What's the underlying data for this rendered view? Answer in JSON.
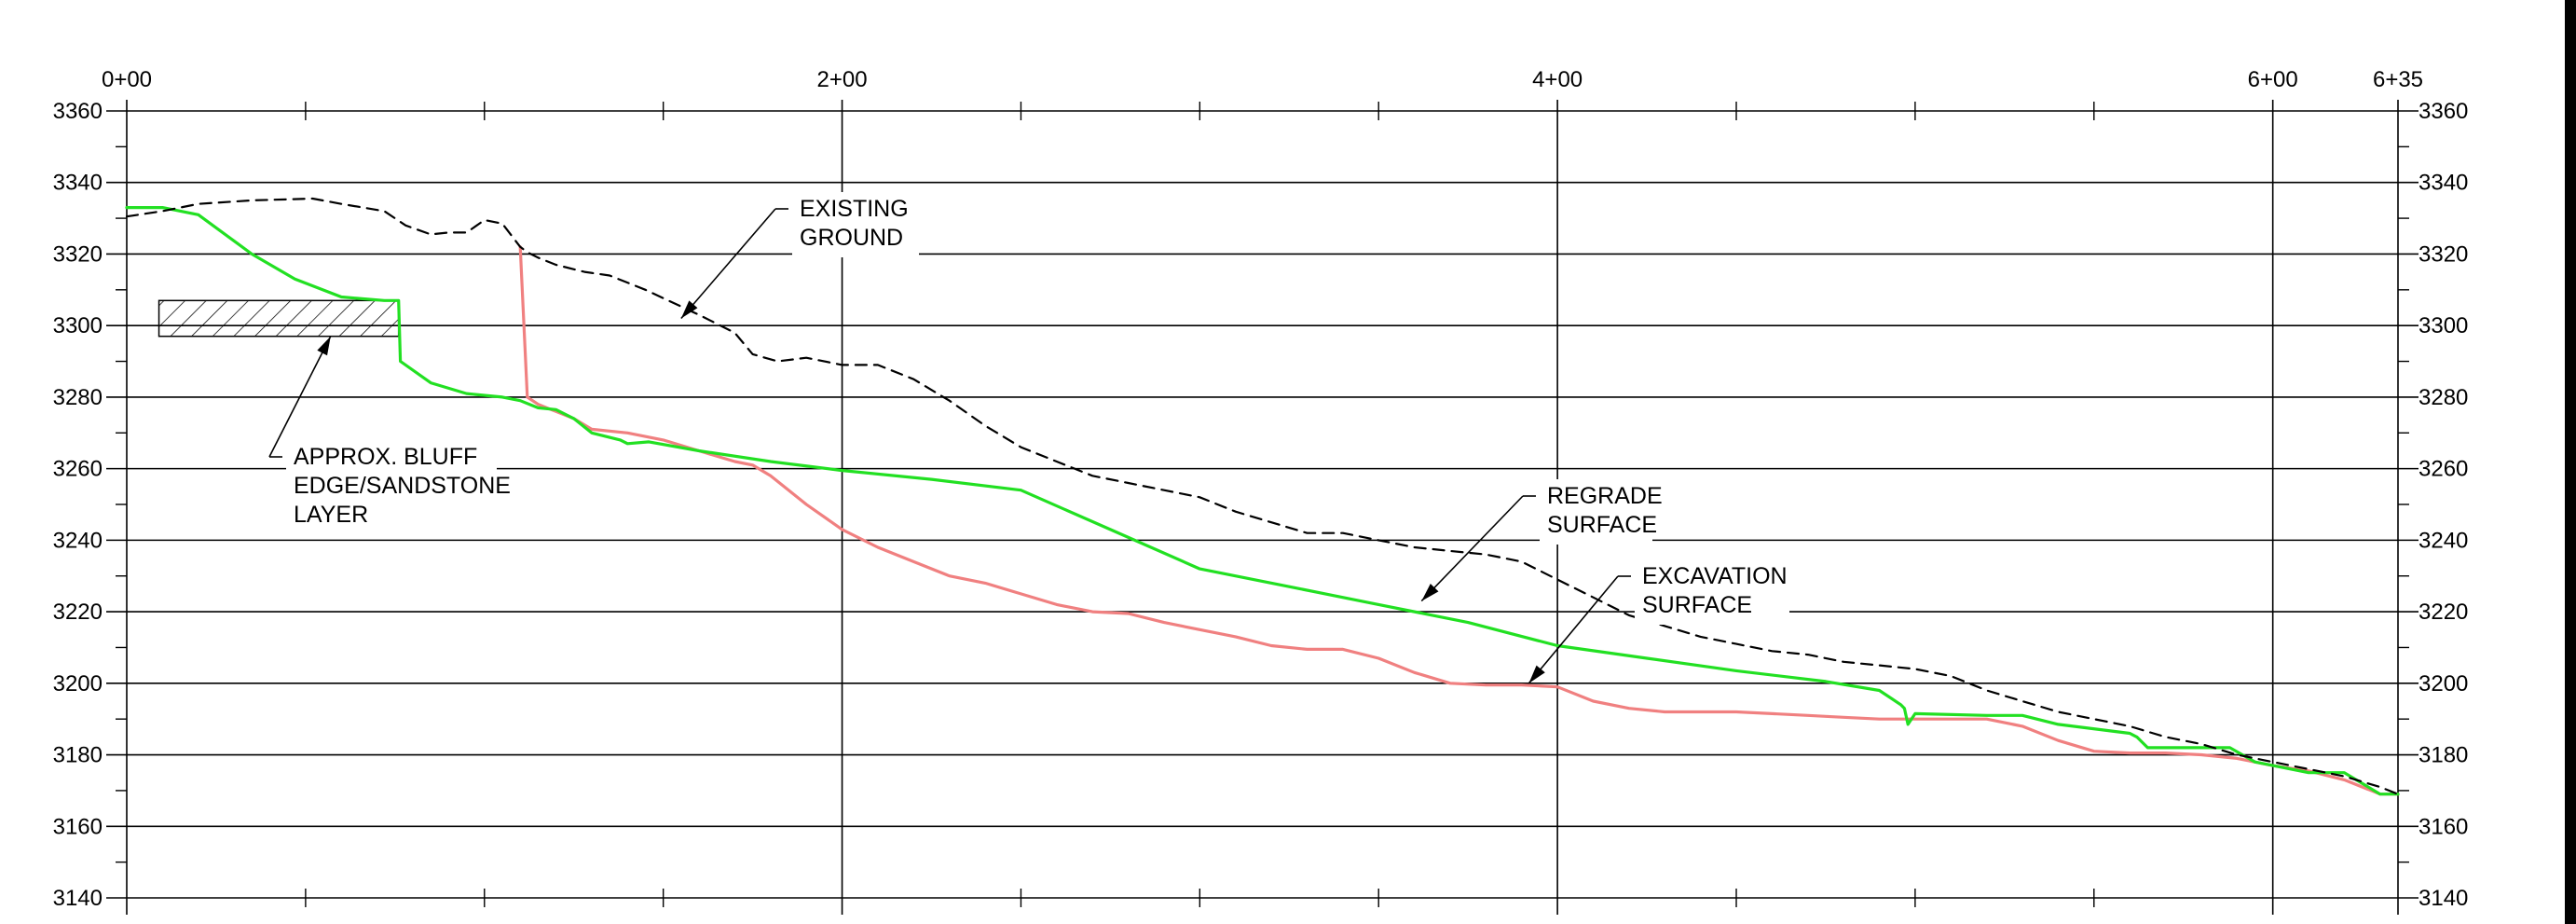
{
  "chart_data": {
    "type": "line",
    "title": "",
    "xlabel": "",
    "ylabel": "",
    "xlim": [
      0,
      635
    ],
    "ylim": [
      3140,
      3360
    ],
    "grid": true,
    "colors": {
      "existing_ground": "#000000",
      "regrade_surface": "#22e022",
      "excavation_surface": "#f08080"
    },
    "x_ticks": [
      {
        "value": 0,
        "label": "0+00"
      },
      {
        "value": 200,
        "label": "2+00"
      },
      {
        "value": 400,
        "label": "4+00"
      },
      {
        "value": 600,
        "label": "6+00"
      },
      {
        "value": 635,
        "label": "6+35"
      }
    ],
    "y_ticks": [
      {
        "value": 3360,
        "label": "3360"
      },
      {
        "value": 3340,
        "label": "3340"
      },
      {
        "value": 3320,
        "label": "3320"
      },
      {
        "value": 3300,
        "label": "3300"
      },
      {
        "value": 3280,
        "label": "3280"
      },
      {
        "value": 3260,
        "label": "3260"
      },
      {
        "value": 3240,
        "label": "3240"
      },
      {
        "value": 3220,
        "label": "3220"
      },
      {
        "value": 3200,
        "label": "3200"
      },
      {
        "value": 3180,
        "label": "3180"
      },
      {
        "value": 3160,
        "label": "3160"
      },
      {
        "value": 3140,
        "label": "3140"
      }
    ],
    "series": [
      {
        "key": "existing_ground",
        "style": "dashed",
        "x": [
          0,
          10,
          20,
          35,
          52,
          60,
          72,
          78,
          85,
          90,
          95,
          100,
          105,
          110,
          112,
          115,
          120,
          128,
          135,
          145,
          160,
          170,
          175,
          182,
          190,
          200,
          210,
          220,
          230,
          240,
          250,
          260,
          270,
          280,
          290,
          300,
          310,
          320,
          330,
          340,
          350,
          360,
          370,
          380,
          390,
          400,
          410,
          420,
          430,
          440,
          450,
          460,
          470,
          480,
          490,
          500,
          510,
          520,
          530,
          540,
          550,
          560,
          570,
          580,
          590,
          600,
          610,
          620,
          630,
          635
        ],
        "y": [
          3330.5,
          3332,
          3334,
          3335,
          3335.5,
          3334,
          3332,
          3328,
          3325.5,
          3326,
          3326,
          3329.5,
          3328.5,
          3322,
          3320.5,
          3319,
          3317,
          3315,
          3314,
          3310,
          3303,
          3298,
          3292,
          3290,
          3291,
          3289,
          3289,
          3285,
          3279,
          3272,
          3266,
          3262,
          3258,
          3256,
          3254,
          3252,
          3248,
          3245,
          3242,
          3242,
          3240,
          3238,
          3237,
          3236,
          3234,
          3229,
          3224,
          3219,
          3216,
          3213,
          3211,
          3209,
          3208,
          3206,
          3205,
          3204,
          3202,
          3198,
          3195,
          3192,
          3190,
          3188,
          3185,
          3183,
          3180,
          3178,
          3176,
          3174,
          3171,
          3169
        ]
      },
      {
        "key": "regrade_surface",
        "style": "solid",
        "x": [
          0,
          10,
          20,
          35,
          47,
          60,
          72,
          76,
          76.5,
          85,
          95,
          105,
          110,
          115,
          120,
          125,
          130,
          138,
          140,
          146,
          160,
          180,
          200,
          225,
          250,
          275,
          300,
          325,
          350,
          375,
          400,
          425,
          450,
          475,
          490,
          496,
          497,
          498,
          500,
          520,
          530,
          540,
          560,
          562,
          565,
          575,
          588,
          595,
          610,
          620,
          630,
          635
        ],
        "y": [
          3333,
          3333,
          3331,
          3320,
          3313,
          3308,
          3307,
          3307,
          3290,
          3284,
          3281,
          3280,
          3279,
          3277,
          3276.5,
          3274,
          3270,
          3268,
          3267,
          3267.5,
          3265,
          3262,
          3259.5,
          3257,
          3254,
          3243,
          3232,
          3227,
          3222,
          3217,
          3210.5,
          3207,
          3203.5,
          3200.5,
          3198,
          3194,
          3193,
          3188.5,
          3191.5,
          3191,
          3191,
          3188.5,
          3186,
          3185,
          3182,
          3182,
          3182,
          3178,
          3175,
          3175,
          3169,
          3169
        ]
      },
      {
        "key": "excavation_surface",
        "style": "solid",
        "x": [
          110,
          112,
          115,
          120,
          125,
          130,
          140,
          150,
          160,
          170,
          175,
          180,
          190,
          200,
          210,
          220,
          230,
          240,
          250,
          260,
          270,
          280,
          290,
          300,
          310,
          320,
          330,
          340,
          350,
          360,
          370,
          380,
          390,
          400,
          410,
          420,
          430,
          440,
          450,
          460,
          470,
          480,
          490,
          500,
          510,
          520,
          530,
          540,
          550,
          560,
          570,
          580,
          590,
          600,
          610,
          620,
          630,
          635
        ],
        "y": [
          3322,
          3280,
          3278,
          3276,
          3274,
          3271,
          3270,
          3268,
          3265,
          3262,
          3261,
          3258,
          3250,
          3243,
          3238,
          3234,
          3230,
          3228,
          3225,
          3222,
          3220,
          3219.5,
          3217,
          3215,
          3213,
          3210.5,
          3209.5,
          3209.5,
          3207,
          3203,
          3200,
          3199.5,
          3199.5,
          3199,
          3195,
          3193,
          3192,
          3192,
          3192,
          3191.5,
          3191,
          3190.5,
          3190,
          3190,
          3190,
          3190,
          3188,
          3184,
          3181,
          3180.5,
          3180.5,
          3180,
          3179,
          3177,
          3175.5,
          3173,
          3169,
          3169
        ]
      }
    ],
    "hatch_region": {
      "x": [
        9,
        76
      ],
      "y": [
        3297,
        3307
      ]
    },
    "annotations": [
      {
        "key": "existing_ground",
        "lines": [
          "EXISTING",
          "GROUND"
        ],
        "arrow_to": {
          "x": 155,
          "y": 3302
        }
      },
      {
        "key": "bluff",
        "lines": [
          "APPROX. BLUFF",
          "EDGE/SANDSTONE",
          "LAYER"
        ],
        "arrow_to": {
          "x": 57,
          "y": 3297
        }
      },
      {
        "key": "regrade",
        "lines": [
          "REGRADE",
          "SURFACE"
        ],
        "arrow_to": {
          "x": 362,
          "y": 3223
        }
      },
      {
        "key": "excavation",
        "lines": [
          "EXCAVATION",
          "SURFACE"
        ],
        "arrow_to": {
          "x": 392,
          "y": 3200
        }
      }
    ]
  }
}
